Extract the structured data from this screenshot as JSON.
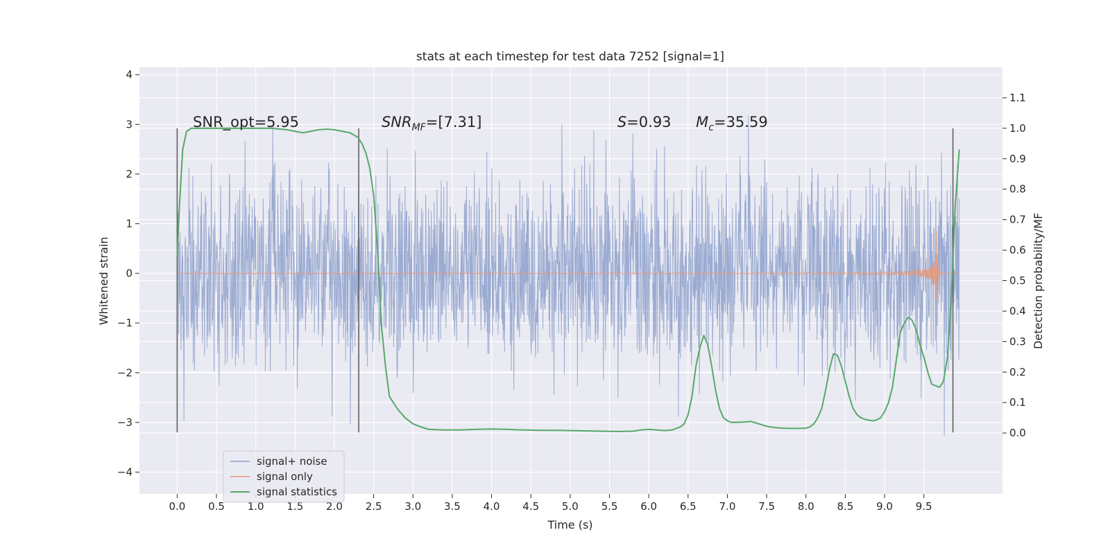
{
  "chart_data": {
    "type": "line",
    "title": "stats at each timestep for test data 7252 [signal=1]",
    "xlabel": "Time (s)",
    "ylabel": "Whitened strain",
    "ylabel_right": "Detection probability/MF",
    "xlim": [
      -0.48,
      10.5
    ],
    "ylim": [
      -4.44,
      4.15
    ],
    "ylim_right": [
      -0.2,
      1.2
    ],
    "x_ticks": [
      "0.0",
      "0.5",
      "1.0",
      "1.5",
      "2.0",
      "2.5",
      "3.0",
      "3.5",
      "4.0",
      "4.5",
      "5.0",
      "5.5",
      "6.0",
      "6.5",
      "7.0",
      "7.5",
      "8.0",
      "8.5",
      "9.0",
      "9.5"
    ],
    "y_ticks": [
      "-4",
      "-3",
      "-2",
      "-1",
      "0",
      "1",
      "2",
      "3",
      "4"
    ],
    "y_right_ticks": [
      "0.0",
      "0.1",
      "0.2",
      "0.3",
      "0.4",
      "0.5",
      "0.6",
      "0.7",
      "0.8",
      "0.9",
      "1.0",
      "1.1"
    ],
    "grid": true,
    "legend_placement": "lower-left",
    "annotations": [
      {
        "text": "SNR_opt=5.95",
        "x": 0.2,
        "y": 2.95
      },
      {
        "text": "SNR",
        "sub": "MF",
        "suffix": "=[7.31]",
        "italic": true,
        "x": 2.6,
        "y": 2.95
      },
      {
        "text": "S",
        "suffix": "=0.93",
        "italic": true,
        "x": 5.6,
        "y": 2.95
      },
      {
        "text": "M",
        "sub": "c",
        "suffix": "=35.59",
        "italic": true,
        "x": 6.6,
        "y": 2.95
      }
    ],
    "vertical_lines": [
      0.0,
      2.31,
      9.87
    ],
    "vertical_line_range": [
      -3.2,
      2.92
    ],
    "series": [
      {
        "name": "signal+ noise",
        "color": "#8da0cb",
        "axis": "left",
        "t_end": 9.95,
        "noise_std": 0.95
      },
      {
        "name": "signal only",
        "color": "#e99675",
        "axis": "left",
        "t_end": 9.95,
        "merger_time": 9.66,
        "peak_amplitude": 1.3
      },
      {
        "name": "signal statistics",
        "color": "#55a868",
        "axis": "right",
        "x": [
          0.0,
          0.03,
          0.07,
          0.12,
          0.18,
          0.3,
          0.5,
          0.8,
          1.0,
          1.2,
          1.4,
          1.5,
          1.6,
          1.7,
          1.8,
          1.9,
          2.0,
          2.1,
          2.2,
          2.3,
          2.35,
          2.4,
          2.45,
          2.5,
          2.55,
          2.6,
          2.65,
          2.7,
          2.8,
          2.9,
          3.0,
          3.1,
          3.2,
          3.4,
          3.6,
          3.8,
          4.0,
          4.2,
          4.4,
          4.6,
          4.8,
          5.0,
          5.2,
          5.4,
          5.6,
          5.8,
          5.9,
          6.0,
          6.1,
          6.2,
          6.3,
          6.4,
          6.45,
          6.5,
          6.55,
          6.6,
          6.65,
          6.7,
          6.75,
          6.8,
          6.85,
          6.9,
          6.95,
          7.0,
          7.05,
          7.1,
          7.2,
          7.3,
          7.4,
          7.5,
          7.6,
          7.7,
          7.8,
          7.9,
          8.0,
          8.05,
          8.1,
          8.15,
          8.2,
          8.25,
          8.3,
          8.35,
          8.4,
          8.45,
          8.5,
          8.55,
          8.6,
          8.65,
          8.7,
          8.75,
          8.8,
          8.85,
          8.9,
          8.95,
          9.0,
          9.05,
          9.1,
          9.15,
          9.2,
          9.25,
          9.3,
          9.35,
          9.4,
          9.45,
          9.5,
          9.55,
          9.6,
          9.65,
          9.7,
          9.75,
          9.8,
          9.85,
          9.9,
          9.95
        ],
        "y": [
          0.58,
          0.75,
          0.93,
          0.99,
          1.0,
          1.0,
          1.0,
          1.0,
          1.0,
          1.0,
          0.995,
          0.99,
          0.985,
          0.99,
          0.995,
          0.997,
          0.995,
          0.99,
          0.985,
          0.97,
          0.95,
          0.92,
          0.87,
          0.78,
          0.6,
          0.35,
          0.22,
          0.12,
          0.08,
          0.05,
          0.03,
          0.02,
          0.012,
          0.01,
          0.01,
          0.012,
          0.013,
          0.012,
          0.01,
          0.009,
          0.009,
          0.008,
          0.007,
          0.006,
          0.005,
          0.006,
          0.01,
          0.012,
          0.01,
          0.008,
          0.01,
          0.02,
          0.03,
          0.06,
          0.12,
          0.22,
          0.28,
          0.32,
          0.29,
          0.22,
          0.14,
          0.08,
          0.05,
          0.04,
          0.035,
          0.035,
          0.036,
          0.038,
          0.03,
          0.022,
          0.018,
          0.016,
          0.015,
          0.015,
          0.016,
          0.02,
          0.03,
          0.05,
          0.08,
          0.14,
          0.21,
          0.26,
          0.255,
          0.22,
          0.17,
          0.12,
          0.08,
          0.06,
          0.05,
          0.045,
          0.042,
          0.04,
          0.043,
          0.05,
          0.07,
          0.1,
          0.15,
          0.24,
          0.33,
          0.36,
          0.38,
          0.37,
          0.34,
          0.29,
          0.25,
          0.2,
          0.16,
          0.155,
          0.15,
          0.17,
          0.25,
          0.45,
          0.75,
          0.93
        ]
      }
    ]
  }
}
